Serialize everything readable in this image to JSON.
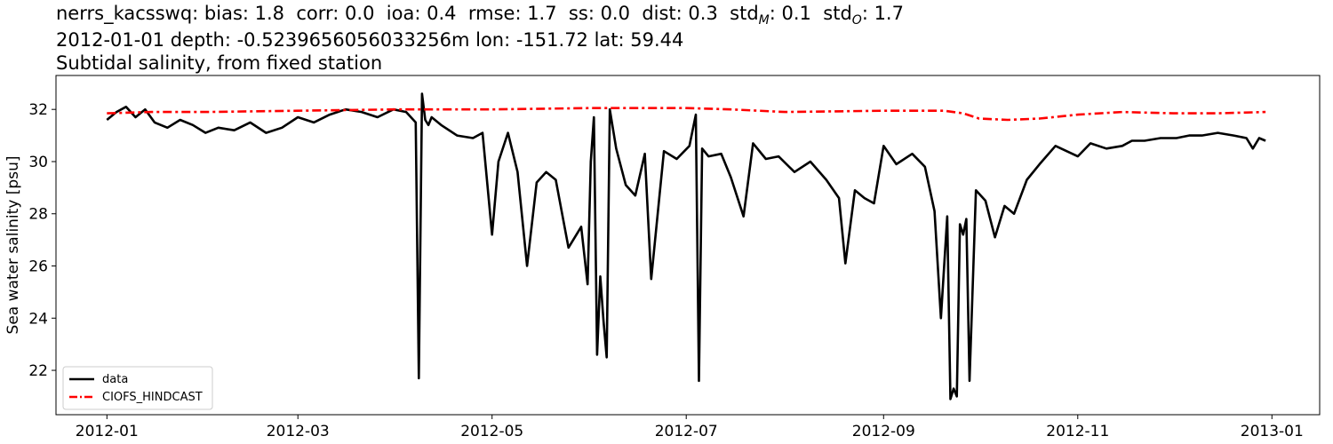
{
  "header": {
    "stats_prefix": "nerrs_kacsswq: bias: 1.8  corr: 0.0  ioa: 0.4  rmse: 1.7  ss: 0.0  dist: 0.3  std",
    "stats_sub_m": "M",
    "stats_mid": ": 0.1  std",
    "stats_sub_o": "O",
    "stats_suffix": ": 1.7",
    "location_line": "2012-01-01 depth: -0.5239656056033256m lon: -151.72 lat: 59.44",
    "subtitle": "Subtidal salinity, from fixed station"
  },
  "chart_data": {
    "type": "line",
    "ylabel": "Sea water salinity [psu]",
    "xlabel": "",
    "xlim": [
      "2011-12-16",
      "2013-01-16"
    ],
    "ylim": [
      20.3,
      33.3
    ],
    "xticks": [
      "2012-01",
      "2012-03",
      "2012-05",
      "2012-07",
      "2012-09",
      "2012-11",
      "2013-01"
    ],
    "yticks": [
      22,
      24,
      26,
      28,
      30,
      32
    ],
    "legend_position": "lower-left",
    "series": [
      {
        "name": "data",
        "color": "#000000",
        "style": "solid",
        "x": [
          "2012-01-01",
          "2012-01-04",
          "2012-01-07",
          "2012-01-10",
          "2012-01-13",
          "2012-01-16",
          "2012-01-20",
          "2012-01-24",
          "2012-01-28",
          "2012-02-01",
          "2012-02-05",
          "2012-02-10",
          "2012-02-15",
          "2012-02-20",
          "2012-02-25",
          "2012-03-01",
          "2012-03-06",
          "2012-03-11",
          "2012-03-16",
          "2012-03-21",
          "2012-03-26",
          "2012-03-31",
          "2012-04-04",
          "2012-04-07",
          "2012-04-08",
          "2012-04-09",
          "2012-04-10",
          "2012-04-11",
          "2012-04-12",
          "2012-04-15",
          "2012-04-20",
          "2012-04-25",
          "2012-04-28",
          "2012-05-01",
          "2012-05-03",
          "2012-05-06",
          "2012-05-09",
          "2012-05-12",
          "2012-05-15",
          "2012-05-18",
          "2012-05-21",
          "2012-05-25",
          "2012-05-29",
          "2012-05-31",
          "2012-06-01",
          "2012-06-02",
          "2012-06-03",
          "2012-06-04",
          "2012-06-05",
          "2012-06-06",
          "2012-06-07",
          "2012-06-09",
          "2012-06-12",
          "2012-06-15",
          "2012-06-18",
          "2012-06-20",
          "2012-06-24",
          "2012-06-28",
          "2012-07-02",
          "2012-07-04",
          "2012-07-05",
          "2012-07-06",
          "2012-07-08",
          "2012-07-12",
          "2012-07-15",
          "2012-07-19",
          "2012-07-22",
          "2012-07-26",
          "2012-07-30",
          "2012-08-04",
          "2012-08-09",
          "2012-08-14",
          "2012-08-18",
          "2012-08-20",
          "2012-08-23",
          "2012-08-26",
          "2012-08-29",
          "2012-09-01",
          "2012-09-05",
          "2012-09-10",
          "2012-09-14",
          "2012-09-17",
          "2012-09-19",
          "2012-09-21",
          "2012-09-22",
          "2012-09-23",
          "2012-09-24",
          "2012-09-25",
          "2012-09-26",
          "2012-09-27",
          "2012-09-28",
          "2012-09-30",
          "2012-10-03",
          "2012-10-06",
          "2012-10-09",
          "2012-10-12",
          "2012-10-16",
          "2012-10-20",
          "2012-10-25",
          "2012-11-01",
          "2012-11-05",
          "2012-11-10",
          "2012-11-15",
          "2012-11-18",
          "2012-11-22",
          "2012-11-27",
          "2012-12-02",
          "2012-12-06",
          "2012-12-10",
          "2012-12-15",
          "2012-12-20",
          "2012-12-24",
          "2012-12-26",
          "2012-12-28",
          "2012-12-30"
        ],
        "y": [
          31.6,
          31.9,
          32.1,
          31.7,
          32.0,
          31.5,
          31.3,
          31.6,
          31.4,
          31.1,
          31.3,
          31.2,
          31.5,
          31.1,
          31.3,
          31.7,
          31.5,
          31.8,
          32.0,
          31.9,
          31.7,
          32.0,
          31.9,
          31.5,
          21.7,
          32.6,
          31.6,
          31.4,
          31.7,
          31.4,
          31.0,
          30.9,
          31.1,
          27.2,
          30.0,
          31.1,
          29.6,
          26.0,
          29.2,
          29.6,
          29.3,
          26.7,
          27.5,
          25.3,
          30.0,
          31.7,
          22.6,
          25.6,
          23.9,
          22.5,
          32.0,
          30.5,
          29.1,
          28.7,
          30.3,
          25.5,
          30.4,
          30.1,
          30.6,
          31.8,
          21.6,
          30.5,
          30.2,
          30.3,
          29.4,
          27.9,
          30.7,
          30.1,
          30.2,
          29.6,
          30.0,
          29.3,
          28.6,
          26.1,
          28.9,
          28.6,
          28.4,
          30.6,
          29.9,
          30.3,
          29.8,
          28.1,
          24.0,
          27.9,
          20.9,
          21.3,
          21.0,
          27.6,
          27.2,
          27.8,
          21.6,
          28.9,
          28.5,
          27.1,
          28.3,
          28.0,
          29.3,
          29.9,
          30.6,
          30.2,
          30.7,
          30.5,
          30.6,
          30.8,
          30.8,
          30.9,
          30.9,
          31.0,
          31.0,
          31.1,
          31.0,
          30.9,
          30.5,
          30.9,
          30.8
        ]
      },
      {
        "name": "CIOFS_HINDCAST",
        "color": "#ff0000",
        "style": "dashdot",
        "x": [
          "2012-01-01",
          "2012-01-15",
          "2012-02-01",
          "2012-03-01",
          "2012-04-01",
          "2012-05-01",
          "2012-06-01",
          "2012-07-01",
          "2012-07-15",
          "2012-08-01",
          "2012-09-01",
          "2012-09-20",
          "2012-09-26",
          "2012-10-01",
          "2012-10-10",
          "2012-10-20",
          "2012-11-01",
          "2012-11-15",
          "2012-12-01",
          "2012-12-15",
          "2012-12-30"
        ],
        "y": [
          31.85,
          31.9,
          31.9,
          31.95,
          32.0,
          32.0,
          32.05,
          32.05,
          32.0,
          31.9,
          31.95,
          31.95,
          31.85,
          31.65,
          31.6,
          31.65,
          31.8,
          31.9,
          31.85,
          31.85,
          31.9
        ]
      }
    ]
  }
}
